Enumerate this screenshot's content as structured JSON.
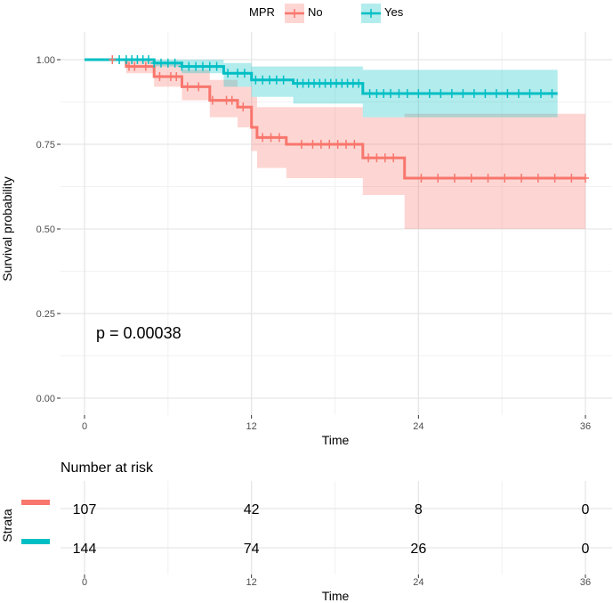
{
  "chart_data": {
    "type": "line",
    "subtype": "kaplan-meier",
    "xlabel": "Time",
    "ylabel": "Survival probability",
    "xlim": [
      0,
      36
    ],
    "ylim": [
      0,
      1
    ],
    "x_ticks": [
      0,
      12,
      24,
      36
    ],
    "y_ticks": [
      0.0,
      0.25,
      0.5,
      0.75,
      1.0
    ],
    "y_tick_labels": [
      "0.00",
      "0.25",
      "0.50",
      "0.75",
      "1.00"
    ],
    "legend": {
      "title": "MPR",
      "position": "top",
      "entries": [
        "No",
        "Yes"
      ]
    },
    "annotation": "p = 0.00038",
    "series": [
      {
        "name": "No",
        "color": "#F8766D",
        "band_color": "#F8766D",
        "steps": [
          [
            0,
            1.0
          ],
          [
            3,
            0.98
          ],
          [
            5,
            0.95
          ],
          [
            7,
            0.92
          ],
          [
            9,
            0.88
          ],
          [
            11,
            0.86
          ],
          [
            12,
            0.8
          ],
          [
            12.4,
            0.77
          ],
          [
            14.5,
            0.75
          ],
          [
            20,
            0.71
          ],
          [
            23,
            0.65
          ],
          [
            36,
            0.65
          ]
        ],
        "lower": [
          [
            0,
            1.0
          ],
          [
            3,
            0.96
          ],
          [
            5,
            0.92
          ],
          [
            7,
            0.88
          ],
          [
            9,
            0.83
          ],
          [
            11,
            0.8
          ],
          [
            12,
            0.73
          ],
          [
            12.4,
            0.68
          ],
          [
            14.5,
            0.65
          ],
          [
            20,
            0.6
          ],
          [
            23,
            0.5
          ],
          [
            36,
            0.5
          ]
        ],
        "upper": [
          [
            0,
            1.0
          ],
          [
            3,
            1.0
          ],
          [
            5,
            0.99
          ],
          [
            7,
            0.97
          ],
          [
            9,
            0.94
          ],
          [
            11,
            0.92
          ],
          [
            12,
            0.89
          ],
          [
            12.4,
            0.86
          ],
          [
            14.5,
            0.86
          ],
          [
            20,
            0.83
          ],
          [
            23,
            0.84
          ],
          [
            36,
            0.84
          ]
        ],
        "censor_x": [
          2,
          3.2,
          3.6,
          4.4,
          5.4,
          6.2,
          6.6,
          7.4,
          8.2,
          9.2,
          10.2,
          10.6,
          11.4,
          12.8,
          13.4,
          14,
          15.6,
          16.4,
          17,
          17.6,
          18.2,
          18.8,
          19.4,
          20.4,
          21,
          21.6,
          22.2,
          24.2,
          25.4,
          26.6,
          27.8,
          29,
          30.2,
          31.4,
          32.6,
          33.8,
          35,
          36
        ]
      },
      {
        "name": "Yes",
        "color": "#00BFC4",
        "band_color": "#00BFC4",
        "steps": [
          [
            0,
            1.0
          ],
          [
            5,
            0.99
          ],
          [
            7,
            0.98
          ],
          [
            10,
            0.96
          ],
          [
            12,
            0.94
          ],
          [
            15,
            0.93
          ],
          [
            20,
            0.9
          ],
          [
            34,
            0.9
          ]
        ],
        "lower": [
          [
            0,
            1.0
          ],
          [
            5,
            0.98
          ],
          [
            7,
            0.96
          ],
          [
            10,
            0.92
          ],
          [
            12,
            0.89
          ],
          [
            15,
            0.87
          ],
          [
            20,
            0.83
          ],
          [
            34,
            0.83
          ]
        ],
        "upper": [
          [
            0,
            1.0
          ],
          [
            5,
            1.0
          ],
          [
            7,
            1.0
          ],
          [
            10,
            0.99
          ],
          [
            12,
            0.98
          ],
          [
            15,
            0.98
          ],
          [
            20,
            0.97
          ],
          [
            34,
            0.97
          ]
        ],
        "censor_x": [
          2.5,
          3,
          3.4,
          3.8,
          4.2,
          4.6,
          5,
          5.5,
          6,
          6.5,
          7,
          7.5,
          8,
          8.5,
          9,
          9.5,
          10.3,
          11,
          11.5,
          12.3,
          12.8,
          13.3,
          13.8,
          14.3,
          15.3,
          15.7,
          16.1,
          16.5,
          16.9,
          17.3,
          17.7,
          18.1,
          18.5,
          18.9,
          19.3,
          19.7,
          20.5,
          21,
          21.5,
          22,
          22.6,
          23.2,
          24,
          24.8,
          25.6,
          26.4,
          27.2,
          28,
          28.8,
          29.6,
          30.4,
          31.2,
          32,
          32.8,
          33.6
        ]
      }
    ],
    "risk_table": {
      "title": "Number at risk",
      "ylabel": "Strata",
      "xlabel": "Time",
      "x_ticks": [
        0,
        12,
        24,
        36
      ],
      "rows": [
        {
          "name": "No",
          "color": "#F8766D",
          "values": [
            107,
            42,
            8,
            0
          ]
        },
        {
          "name": "Yes",
          "color": "#00BFC4",
          "values": [
            144,
            74,
            26,
            0
          ]
        }
      ]
    }
  }
}
